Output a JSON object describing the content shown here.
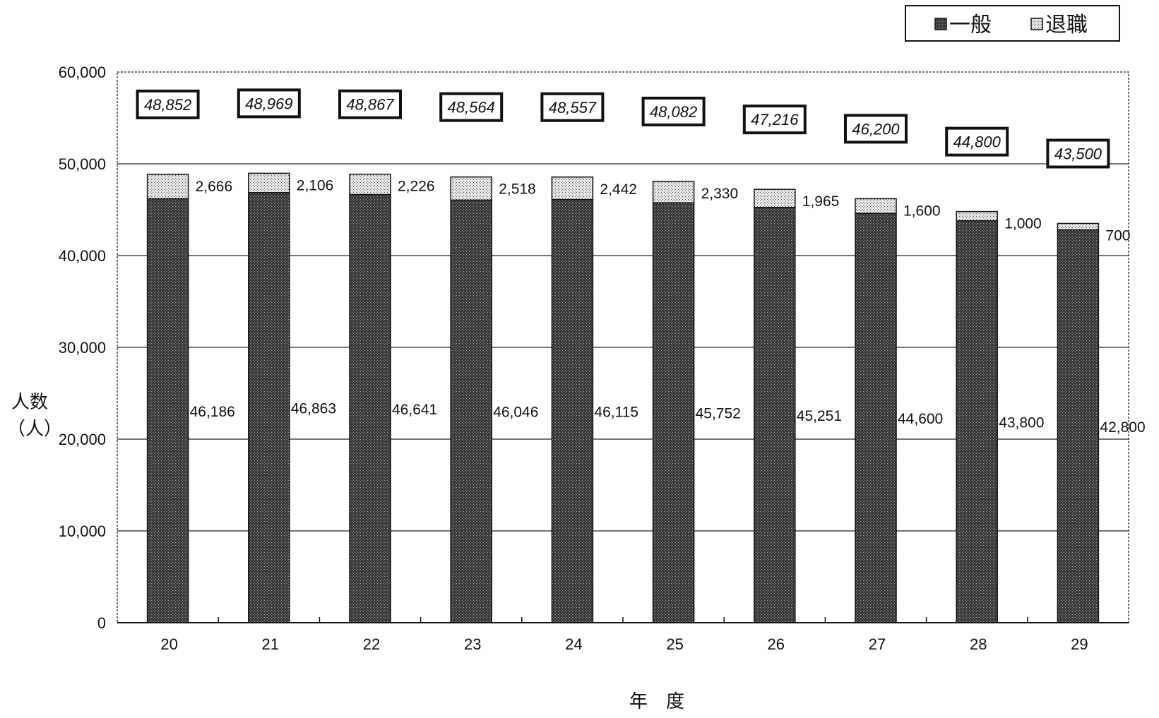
{
  "chart_data": {
    "type": "bar",
    "stacked": true,
    "categories": [
      "20",
      "21",
      "22",
      "23",
      "24",
      "25",
      "26",
      "27",
      "28",
      "29"
    ],
    "series": [
      {
        "name": "一般",
        "values": [
          46186,
          46863,
          46641,
          46046,
          46115,
          45752,
          45251,
          44600,
          43800,
          42800
        ]
      },
      {
        "name": "退職",
        "values": [
          2666,
          2106,
          2226,
          2518,
          2442,
          2330,
          1965,
          1600,
          1000,
          700
        ]
      }
    ],
    "totals": [
      48852,
      48969,
      48867,
      48564,
      48557,
      48082,
      47216,
      46200,
      44800,
      43500
    ],
    "general_labels": [
      "46,186",
      "46,863",
      "46,641",
      "46,046",
      "46,115",
      "45,752",
      "45,251",
      "44,600",
      "43,800",
      "42,800"
    ],
    "retired_labels": [
      "2,666",
      "2,106",
      "2,226",
      "2,518",
      "2,442",
      "2,330",
      "1,965",
      "1,600",
      "1,000",
      "700"
    ],
    "total_labels": [
      "48,852",
      "48,969",
      "48,867",
      "48,564",
      "48,557",
      "48,082",
      "47,216",
      "46,200",
      "44,800",
      "43,500"
    ],
    "ylim": [
      0,
      60000
    ],
    "yticks": [
      0,
      10000,
      20000,
      30000,
      40000,
      50000,
      60000
    ],
    "ytick_labels": [
      "0",
      "10,000",
      "20,000",
      "30,000",
      "40,000",
      "50,000",
      "60,000"
    ],
    "ylabel_line1": "人数",
    "ylabel_line2": "（人）",
    "xlabel": "年　度",
    "legend": {
      "position": "top-right",
      "items": [
        "一般",
        "退職"
      ]
    },
    "grid": true,
    "colors": {
      "general": "#2b2b2b",
      "retired": "#d2d2d2",
      "frame": "#111111"
    }
  }
}
